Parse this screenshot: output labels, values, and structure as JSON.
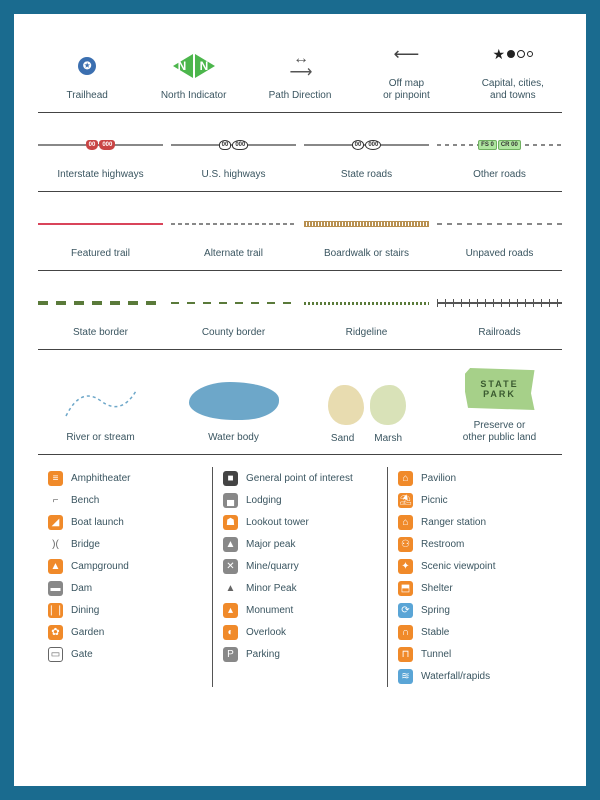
{
  "colors": {
    "border": "#1a6b8f",
    "text": "#3a5560",
    "orange": "#f08a2a",
    "gray": "#888888",
    "blue": "#5aa5d6",
    "green": "#4cb64c",
    "water": "#6da7c9",
    "sand": "#e8dcb0",
    "marsh": "#d9e2b8",
    "park": "#a6d089",
    "trail_featured": "#d9445a",
    "border_green": "#5a7a3a"
  },
  "row1": {
    "trailhead": "Trailhead",
    "north": "North Indicator",
    "path": "Path Direction",
    "offmap": "Off map\nor pinpoint",
    "cities": "Capital, cities,\nand towns"
  },
  "row2": {
    "interstate": "Interstate highways",
    "us": "U.S. highways",
    "state": "State roads",
    "other": "Other roads"
  },
  "row3": {
    "featured": "Featured trail",
    "alternate": "Alternate trail",
    "boardwalk": "Boardwalk or stairs",
    "unpaved": "Unpaved roads"
  },
  "row4": {
    "state": "State border",
    "county": "County border",
    "ridge": "Ridgeline",
    "rail": "Railroads"
  },
  "row5": {
    "river": "River or stream",
    "water": "Water body",
    "sand": "Sand",
    "marsh": "Marsh",
    "park_line1": "STATE",
    "park_line2": "PARK",
    "preserve": "Preserve or\nother public land"
  },
  "icons": {
    "col1": [
      {
        "glyph": "≡",
        "cls": "orange",
        "label": "Amphitheater"
      },
      {
        "glyph": "⌐",
        "cls": "plain",
        "label": "Bench"
      },
      {
        "glyph": "◢",
        "cls": "orange",
        "label": "Boat launch"
      },
      {
        "glyph": ")(",
        "cls": "plain",
        "label": "Bridge"
      },
      {
        "glyph": "▲",
        "cls": "orange",
        "label": "Campground"
      },
      {
        "glyph": "▬",
        "cls": "gray",
        "label": "Dam"
      },
      {
        "glyph": "❘❘",
        "cls": "orange",
        "label": "Dining"
      },
      {
        "glyph": "✿",
        "cls": "orange",
        "label": "Garden"
      },
      {
        "glyph": "▭",
        "cls": "outline",
        "label": "Gate"
      }
    ],
    "col2": [
      {
        "glyph": "■",
        "cls": "dark",
        "label": "General point of interest"
      },
      {
        "glyph": "▄",
        "cls": "gray",
        "label": "Lodging"
      },
      {
        "glyph": "☗",
        "cls": "orange",
        "label": "Lookout tower"
      },
      {
        "glyph": "▲",
        "cls": "gray",
        "label": "Major peak"
      },
      {
        "glyph": "✕",
        "cls": "gray",
        "label": "Mine/quarry"
      },
      {
        "glyph": "▲",
        "cls": "plain",
        "label": "Minor Peak"
      },
      {
        "glyph": "▴",
        "cls": "orange",
        "label": "Monument"
      },
      {
        "glyph": "◐",
        "cls": "orange",
        "label": "Overlook"
      },
      {
        "glyph": "P",
        "cls": "gray",
        "label": "Parking"
      }
    ],
    "col3": [
      {
        "glyph": "⌂",
        "cls": "orange",
        "label": "Pavilion"
      },
      {
        "glyph": "⛱",
        "cls": "orange",
        "label": "Picnic"
      },
      {
        "glyph": "⌂",
        "cls": "orange",
        "label": "Ranger station"
      },
      {
        "glyph": "⚇",
        "cls": "orange",
        "label": "Restroom"
      },
      {
        "glyph": "✦",
        "cls": "orange",
        "label": "Scenic viewpoint"
      },
      {
        "glyph": "⬒",
        "cls": "orange",
        "label": "Shelter"
      },
      {
        "glyph": "⟳",
        "cls": "blue",
        "label": "Spring"
      },
      {
        "glyph": "∩",
        "cls": "orange",
        "label": "Stable"
      },
      {
        "glyph": "⊓",
        "cls": "orange",
        "label": "Tunnel"
      },
      {
        "glyph": "≋",
        "cls": "blue",
        "label": "Waterfall/rapids"
      }
    ]
  }
}
